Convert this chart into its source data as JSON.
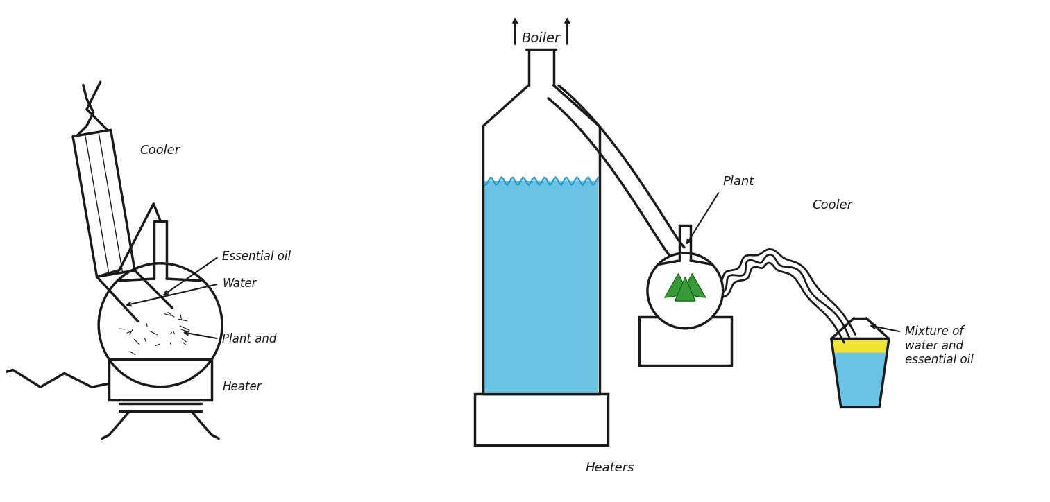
{
  "background_color": "#ffffff",
  "line_color": "#1a1a1a",
  "blue_water_color": "#5bbde0",
  "green_plant_color": "#3a9a3a",
  "yellow_oil_color": "#f0e020",
  "figsize": [
    15.13,
    7.24
  ],
  "dpi": 100,
  "labels": {
    "boiler": "Boiler",
    "cooler_left": "Cooler",
    "essential_oil": "Essential oil",
    "water": "Water",
    "plant_and": "Plant and",
    "heater_left": "Heater",
    "plant_right": "Plant",
    "cooler_right": "Cooler",
    "heaters": "Heaters",
    "mixture": "Mixture of\nwater and\nessential oil"
  }
}
